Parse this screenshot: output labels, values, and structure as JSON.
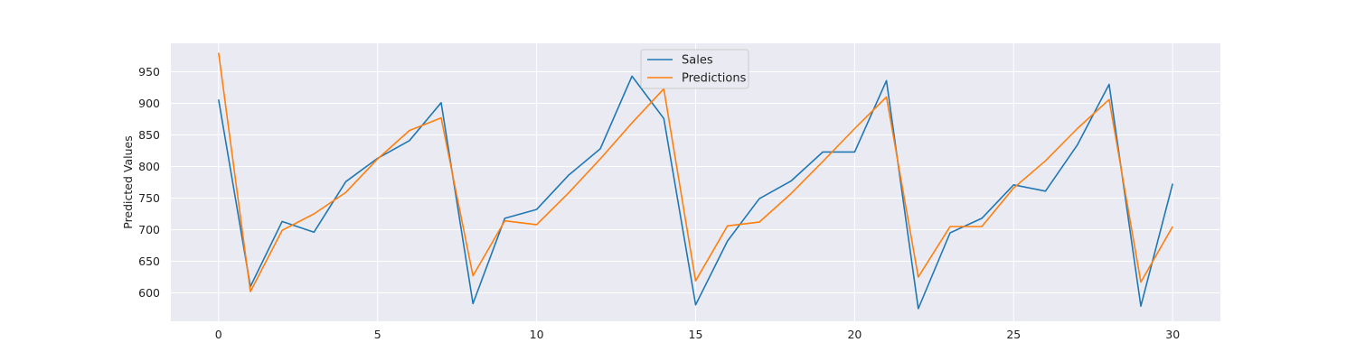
{
  "chart_data": {
    "type": "line",
    "title": "",
    "xlabel": "",
    "ylabel": "Predicted Values",
    "xlim": [
      -1.5,
      31.5
    ],
    "ylim": [
      555,
      995
    ],
    "grid": true,
    "legend_position": "top-center",
    "x_ticks": [
      0,
      5,
      10,
      15,
      20,
      25,
      30
    ],
    "y_ticks": [
      600,
      650,
      700,
      750,
      800,
      850,
      900,
      950
    ],
    "x": [
      0,
      1,
      2,
      3,
      4,
      5,
      6,
      7,
      8,
      9,
      10,
      11,
      12,
      13,
      14,
      15,
      16,
      17,
      18,
      19,
      20,
      21,
      22,
      23,
      24,
      25,
      26,
      27,
      28,
      29,
      30
    ],
    "series": [
      {
        "name": "Sales",
        "color": "#1f77b4",
        "values": [
          906,
          610,
          713,
          696,
          776,
          813,
          841,
          901,
          583,
          718,
          732,
          786,
          828,
          943,
          876,
          581,
          682,
          749,
          777,
          823,
          823,
          936,
          575,
          695,
          718,
          771,
          761,
          834,
          930,
          579,
          773
        ]
      },
      {
        "name": "Predictions",
        "color": "#ff7f0e",
        "values": [
          980,
          602,
          699,
          725,
          759,
          812,
          857,
          877,
          627,
          714,
          708,
          758,
          812,
          869,
          923,
          619,
          706,
          712,
          757,
          808,
          860,
          910,
          625,
          705,
          705,
          766,
          809,
          860,
          906,
          617,
          705
        ]
      }
    ]
  }
}
